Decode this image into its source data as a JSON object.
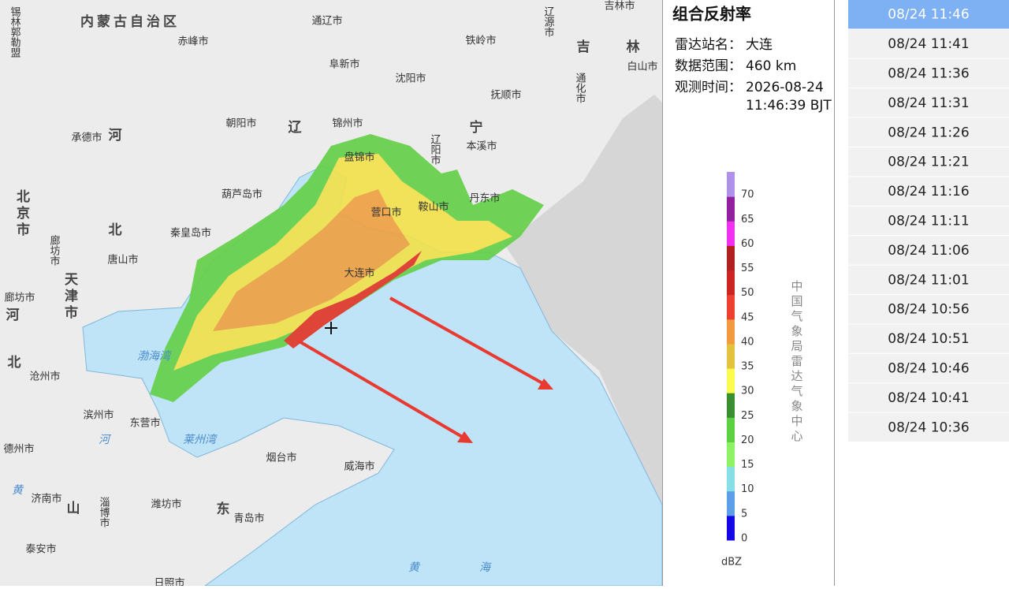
{
  "map": {
    "labels": [
      "锡林郭勒盟",
      "内蒙古自治区",
      "通辽市",
      "赤峰市",
      "铁岭市",
      "辽源市",
      "吉林市",
      "吉",
      "林",
      "白山市",
      "阜新市",
      "沈阳市",
      "抚顺市",
      "通化市",
      "朝阳市",
      "辽",
      "锦州市",
      "宁",
      "承德市",
      "河",
      "辽阳市",
      "本溪市",
      "盘锦市",
      "葫芦岛市",
      "营口市",
      "鞍山市",
      "丹东市",
      "北京市",
      "廊坊市",
      "北",
      "秦皇岛市",
      "唐山市",
      "天津市",
      "大连市",
      "廊坊市",
      "河",
      "北",
      "沧州市",
      "渤海湾",
      "滨州市",
      "东营市",
      "莱州湾",
      "德州市",
      "河",
      "烟台市",
      "威海市",
      "黄",
      "济南市",
      "山",
      "淄博市",
      "潍坊市",
      "东",
      "青岛市",
      "泰安市",
      "黄",
      "海",
      "日照市"
    ]
  },
  "panel": {
    "title": "组合反射率",
    "station_label": "雷达站名：",
    "station": "大连",
    "range_label": "数据范围：",
    "range": "460 km",
    "time_label": "观测时间：",
    "time_date": "2026-08-24",
    "time_clock": "11:46:39 BJT"
  },
  "legend": {
    "levels": [
      0,
      5,
      10,
      15,
      20,
      25,
      30,
      35,
      40,
      45,
      50,
      55,
      60,
      65,
      70
    ],
    "colors": [
      "#1408e6",
      "#5c9ee8",
      "#86dfe6",
      "#8ef266",
      "#5ccf42",
      "#3a8f30",
      "#fbfb4e",
      "#e2c23e",
      "#f29a40",
      "#ee4030",
      "#cc2420",
      "#b0201e",
      "#f032ef",
      "#92209e",
      "#ae92ea"
    ],
    "unit": "dBZ",
    "credit": "中国气象局雷达气象中心"
  },
  "times": [
    "08/24 11:46",
    "08/24 11:41",
    "08/24 11:36",
    "08/24 11:31",
    "08/24 11:26",
    "08/24 11:21",
    "08/24 11:16",
    "08/24 11:11",
    "08/24 11:06",
    "08/24 11:01",
    "08/24 10:56",
    "08/24 10:51",
    "08/24 10:46",
    "08/24 10:41",
    "08/24 10:36"
  ]
}
